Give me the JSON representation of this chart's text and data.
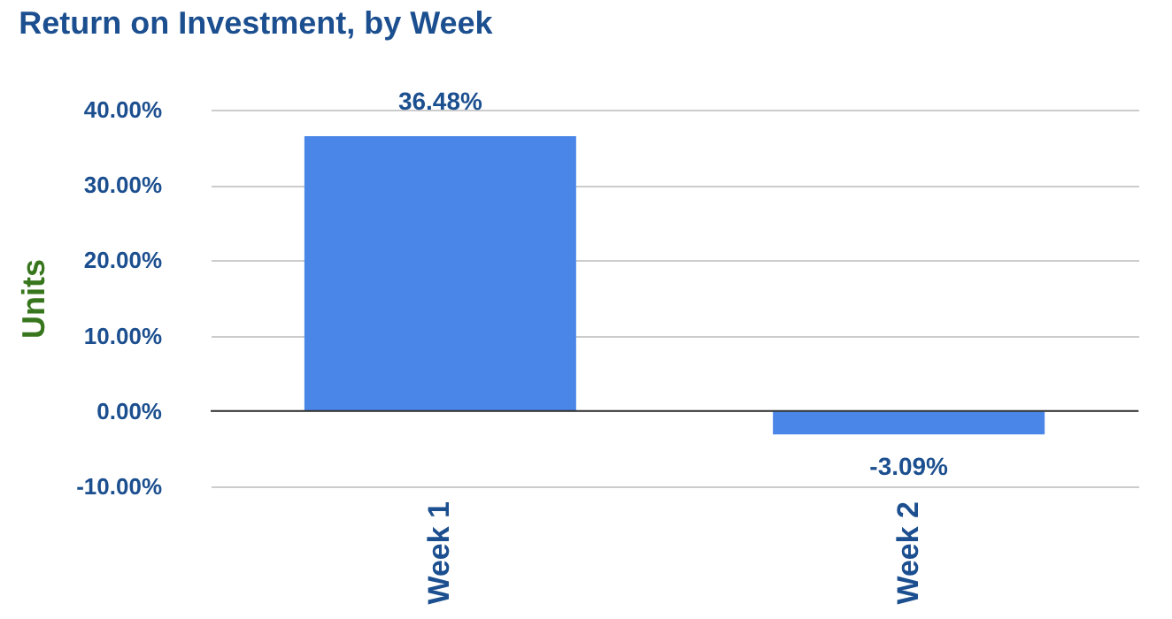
{
  "chart_data": {
    "type": "bar",
    "title": "Return on Investment, by Week",
    "ylabel": "Units",
    "categories": [
      "Week 1",
      "Week 2"
    ],
    "series": [
      {
        "color": "#4a86e8",
        "values": [
          36.48,
          -3.09
        ],
        "value_labels": [
          "36.48%",
          "-3.09%"
        ]
      }
    ],
    "ylim": [
      -10,
      40
    ],
    "yticks": [
      {
        "value": -10,
        "label": "-10.00%"
      },
      {
        "value": 0,
        "label": "0.00%"
      },
      {
        "value": 10,
        "label": "10.00%"
      },
      {
        "value": 20,
        "label": "20.00%"
      },
      {
        "value": 30,
        "label": "30.00%"
      },
      {
        "value": 40,
        "label": "40.00%"
      }
    ],
    "grid": "y",
    "ref_lines": [
      {
        "axis": "y",
        "value": 0,
        "color": "#333333"
      }
    ]
  }
}
